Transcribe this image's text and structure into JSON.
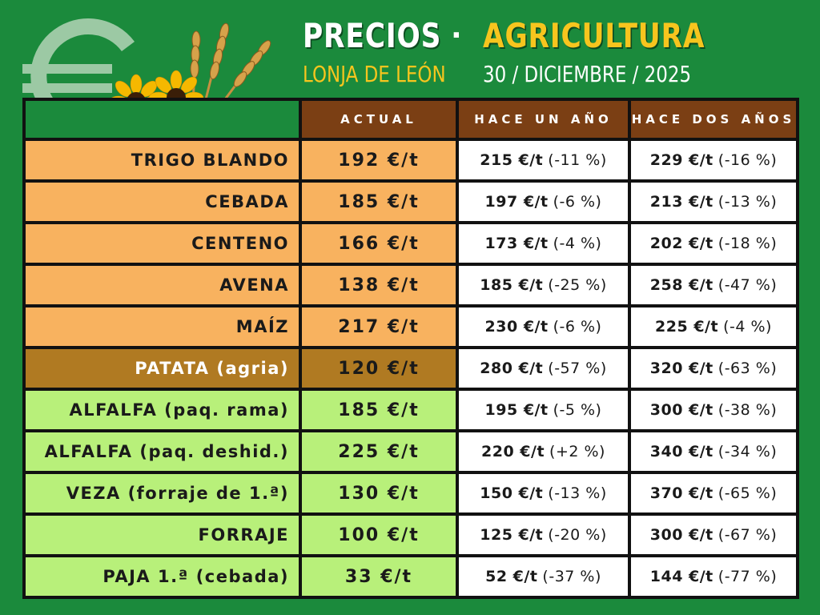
{
  "header": {
    "title_left": "PRECIOS",
    "separator": "·",
    "title_right": "AGRICULTURA",
    "subtitle_left": "LONJA DE LEÓN",
    "date": "30 / DICIEMBRE / 2025"
  },
  "colors": {
    "background": "#1b8a3c",
    "header_bar": "#7b3f14",
    "cereal_row": "#f8b25f",
    "potato_row": "#b07a22",
    "forage_row": "#b8f07a",
    "compare_cell": "#ffffff",
    "title_yellow": "#f7c51e"
  },
  "icons": {
    "logo": "euro-icon",
    "decoration": "sunflower-wheat-icon"
  },
  "table": {
    "columns": [
      "ACTUAL",
      "HACE UN AÑO",
      "HACE DOS AÑOS"
    ],
    "rows": [
      {
        "name": "TRIGO BLANDO",
        "actual": "192 €/t",
        "year1": "215 €/t",
        "year1_pct": "(-11 %)",
        "year2": "229 €/t",
        "year2_pct": "(-16 %)",
        "group": "cereal"
      },
      {
        "name": "CEBADA",
        "actual": "185 €/t",
        "year1": "197 €/t",
        "year1_pct": "(-6 %)",
        "year2": "213 €/t",
        "year2_pct": "(-13 %)",
        "group": "cereal"
      },
      {
        "name": "CENTENO",
        "actual": "166 €/t",
        "year1": "173 €/t",
        "year1_pct": "(-4 %)",
        "year2": "202 €/t",
        "year2_pct": "(-18 %)",
        "group": "cereal"
      },
      {
        "name": "AVENA",
        "actual": "138 €/t",
        "year1": "185 €/t",
        "year1_pct": "(-25 %)",
        "year2": "258 €/t",
        "year2_pct": "(-47 %)",
        "group": "cereal"
      },
      {
        "name": "MAÍZ",
        "actual": "217 €/t",
        "year1": "230 €/t",
        "year1_pct": "(-6 %)",
        "year2": "225 €/t",
        "year2_pct": "(-4 %)",
        "group": "cereal"
      },
      {
        "name": "PATATA (agria)",
        "actual": "120 €/t",
        "year1": "280 €/t",
        "year1_pct": "(-57 %)",
        "year2": "320 €/t",
        "year2_pct": "(-63 %)",
        "group": "potato"
      },
      {
        "name": "ALFALFA (paq. rama)",
        "actual": "185 €/t",
        "year1": "195 €/t",
        "year1_pct": "(-5 %)",
        "year2": "300 €/t",
        "year2_pct": "(-38 %)",
        "group": "forage"
      },
      {
        "name": "ALFALFA (paq. deshid.)",
        "actual": "225 €/t",
        "year1": "220 €/t",
        "year1_pct": "(+2 %)",
        "year2": "340 €/t",
        "year2_pct": "(-34 %)",
        "group": "forage"
      },
      {
        "name": "VEZA (forraje de 1.ª)",
        "actual": "130 €/t",
        "year1": "150 €/t",
        "year1_pct": "(-13 %)",
        "year2": "370 €/t",
        "year2_pct": "(-65 %)",
        "group": "forage"
      },
      {
        "name": "FORRAJE",
        "actual": "100 €/t",
        "year1": "125 €/t",
        "year1_pct": "(-20 %)",
        "year2": "300 €/t",
        "year2_pct": "(-67 %)",
        "group": "forage"
      },
      {
        "name": "PAJA 1.ª (cebada)",
        "actual": "33 €/t",
        "year1": "52 €/t",
        "year1_pct": "(-37 %)",
        "year2": "144 €/t",
        "year2_pct": "(-77 %)",
        "group": "forage"
      }
    ]
  }
}
